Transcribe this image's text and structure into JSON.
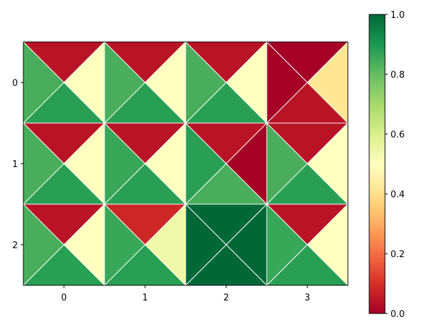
{
  "chart_data": {
    "type": "heatmap",
    "subtype": "quadrant-triangles",
    "title": "",
    "xlabel": "",
    "ylabel": "",
    "x_ticks": [
      "0",
      "1",
      "2",
      "3"
    ],
    "y_ticks": [
      "0",
      "1",
      "2"
    ],
    "quadrant_order": [
      "top",
      "right",
      "bottom",
      "left"
    ],
    "cells": [
      [
        {
          "top": 0.04,
          "right": 0.5,
          "bottom": 0.88,
          "left": 0.84
        },
        {
          "top": 0.04,
          "right": 0.5,
          "bottom": 0.88,
          "left": 0.84
        },
        {
          "top": 0.04,
          "right": 0.5,
          "bottom": 0.88,
          "left": 0.84
        },
        {
          "top": 0.0,
          "right": 0.42,
          "bottom": 0.04,
          "left": 0.0
        }
      ],
      [
        {
          "top": 0.04,
          "right": 0.5,
          "bottom": 0.88,
          "left": 0.84
        },
        {
          "top": 0.04,
          "right": 0.5,
          "bottom": 0.88,
          "left": 0.86
        },
        {
          "top": 0.04,
          "right": 0.0,
          "bottom": 0.84,
          "left": 0.88
        },
        {
          "top": 0.04,
          "right": 0.5,
          "bottom": 0.88,
          "left": 0.84
        }
      ],
      [
        {
          "top": 0.04,
          "right": 0.5,
          "bottom": 0.88,
          "left": 0.84
        },
        {
          "top": 0.08,
          "right": 0.54,
          "bottom": 0.88,
          "left": 0.86
        },
        {
          "top": 1.0,
          "right": 1.0,
          "bottom": 1.0,
          "left": 1.0
        },
        {
          "top": 0.04,
          "right": 0.5,
          "bottom": 0.88,
          "left": 0.86
        }
      ]
    ],
    "colorbar": {
      "colormap": "RdYlGn",
      "range": [
        0,
        1
      ],
      "ticks": [
        "0.0",
        "0.2",
        "0.4",
        "0.6",
        "0.8",
        "1.0"
      ]
    },
    "grid": false,
    "legend": "none"
  }
}
